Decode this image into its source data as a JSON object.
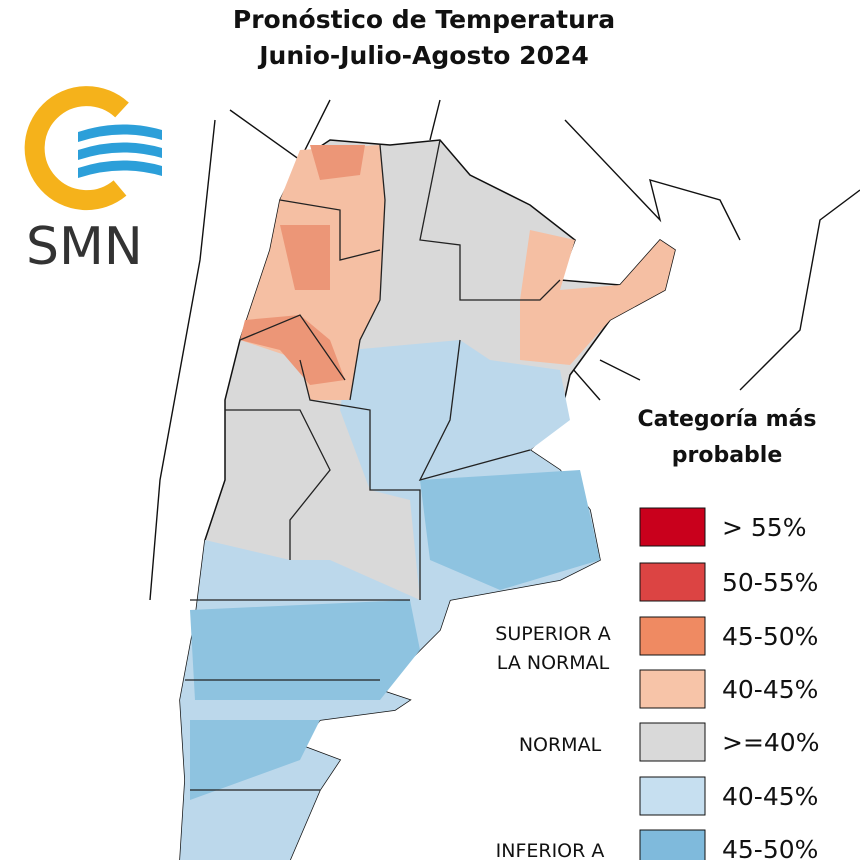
{
  "header": {
    "title": "Pronóstico de Temperatura",
    "subtitle": "Junio-Julio-Agosto 2024"
  },
  "logo": {
    "text": "SMN"
  },
  "legend": {
    "title_lines": [
      "Categoría más",
      "probable"
    ],
    "groups": [
      {
        "lines": [
          "SUPERIOR A",
          "LA NORMAL"
        ]
      },
      {
        "lines": [
          "NORMAL"
        ]
      },
      {
        "lines": [
          "INFERIOR A"
        ]
      }
    ],
    "items": [
      {
        "label": "> 55%",
        "color": "#c9001c"
      },
      {
        "label": "50-55%",
        "color": "#dc4443"
      },
      {
        "label": "45-50%",
        "color": "#ef8a62"
      },
      {
        "label": "40-45%",
        "color": "#f7c4a8"
      },
      {
        "label": ">=40%",
        "color": "#d9d9d9"
      },
      {
        "label": "40-45%",
        "color": "#c6dff0"
      },
      {
        "label": "45-50%",
        "color": "#7fbadc"
      }
    ]
  }
}
